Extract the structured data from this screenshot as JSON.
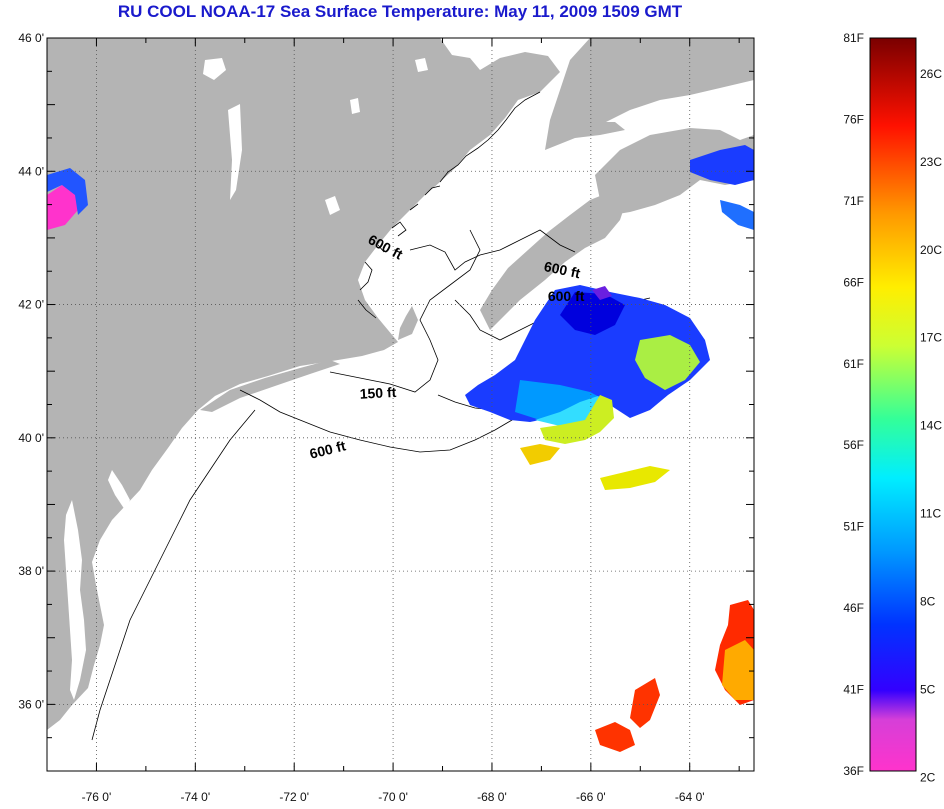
{
  "title": "RU COOL  NOAA-17  Sea Surface Temperature:  May 11, 2009 1509 GMT",
  "map": {
    "lon_range": [
      -77,
      -62.7
    ],
    "lat_range": [
      35,
      46
    ],
    "lat_ticks": [
      {
        "value": 46,
        "label": "46 0'"
      },
      {
        "value": 44,
        "label": "44 0'"
      },
      {
        "value": 42,
        "label": "42 0'"
      },
      {
        "value": 40,
        "label": "40 0'"
      },
      {
        "value": 38,
        "label": "38 0'"
      },
      {
        "value": 36,
        "label": "36 0'"
      }
    ],
    "lon_ticks": [
      {
        "value": -76,
        "label": "-76 0'"
      },
      {
        "value": -74,
        "label": "-74 0'"
      },
      {
        "value": -72,
        "label": "-72 0'"
      },
      {
        "value": -70,
        "label": "-70 0'"
      },
      {
        "value": -68,
        "label": "-68 0'"
      },
      {
        "value": -66,
        "label": "-66 0'"
      },
      {
        "value": -64,
        "label": "-64 0'"
      }
    ],
    "contour_labels": [
      {
        "text": "600 ft",
        "lon": -70.2,
        "lat": 42.8,
        "rotate": 28
      },
      {
        "text": "600 ft",
        "lon": -66.6,
        "lat": 42.45,
        "rotate": 12
      },
      {
        "text": "600 ft",
        "lon": -66.5,
        "lat": 42.05,
        "rotate": 0
      },
      {
        "text": "150 ft",
        "lon": -70.3,
        "lat": 40.6,
        "rotate": -3
      },
      {
        "text": "600 ft",
        "lon": -71.3,
        "lat": 39.75,
        "rotate": -14
      }
    ],
    "colors": {
      "land": "#b4b4b4",
      "ocean": "#ffffff",
      "coastline": "#000000",
      "grid": "#555555"
    }
  },
  "colorbar": {
    "f_labels": [
      {
        "value": 81,
        "label": "81F"
      },
      {
        "value": 76,
        "label": "76F"
      },
      {
        "value": 71,
        "label": "71F"
      },
      {
        "value": 66,
        "label": "66F"
      },
      {
        "value": 61,
        "label": "61F"
      },
      {
        "value": 56,
        "label": "56F"
      },
      {
        "value": 51,
        "label": "51F"
      },
      {
        "value": 46,
        "label": "46F"
      },
      {
        "value": 41,
        "label": "41F"
      },
      {
        "value": 36,
        "label": "36F"
      }
    ],
    "c_labels": [
      {
        "value": 26,
        "label": "26C"
      },
      {
        "value": 23,
        "label": "23C"
      },
      {
        "value": 20,
        "label": "20C"
      },
      {
        "value": 17,
        "label": "17C"
      },
      {
        "value": 14,
        "label": "14C"
      },
      {
        "value": 11,
        "label": "11C"
      },
      {
        "value": 8,
        "label": "8C"
      },
      {
        "value": 5,
        "label": "5C"
      },
      {
        "value": 2,
        "label": "2C"
      }
    ],
    "range_f": [
      36,
      81
    ],
    "gradient": [
      "#ff33cc",
      "#b84dd6",
      "#0000ff",
      "#0066ff",
      "#00ccff",
      "#00ffcc",
      "#66ff33",
      "#ffff00",
      "#ffaa00",
      "#ff3300",
      "#cc0000",
      "#7a0000"
    ]
  }
}
